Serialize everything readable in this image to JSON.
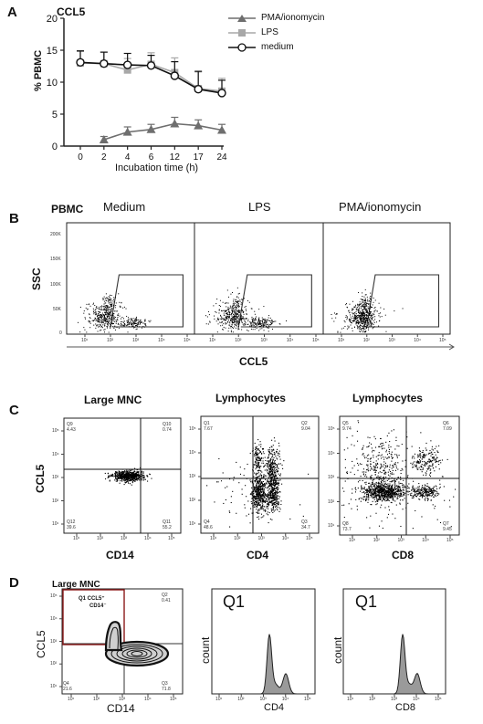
{
  "panelA": {
    "letter": "A",
    "title": "CCL5",
    "ylabel": "% PBMC",
    "xlabel": "Incubation time (h)",
    "legend": [
      {
        "label": "PMA/ionomycin",
        "color": "#6e6e6e",
        "marker": "triangle"
      },
      {
        "label": "LPS",
        "color": "#a8a8a8",
        "marker": "square"
      },
      {
        "label": "medium",
        "color": "#111111",
        "marker": "circle"
      }
    ]
  },
  "chart_data": {
    "type": "line",
    "title": "CCL5",
    "xlabel": "Incubation time (h)",
    "ylabel": "% PBMC",
    "categories": [
      "0",
      "2",
      "4",
      "6",
      "12",
      "17",
      "24"
    ],
    "ylim": [
      0,
      20
    ],
    "yticks": [
      0,
      5,
      10,
      15,
      20
    ],
    "series": [
      {
        "name": "PMA/ionomycin",
        "x": [
          2,
          4,
          6,
          12,
          17,
          24
        ],
        "values": [
          1.0,
          2.2,
          2.6,
          3.5,
          3.2,
          2.5
        ],
        "err": [
          0.5,
          0.8,
          0.8,
          1.0,
          0.9,
          0.9
        ]
      },
      {
        "name": "LPS",
        "x": [
          0,
          2,
          4,
          6,
          12,
          17,
          24
        ],
        "values": [
          13.0,
          12.9,
          11.9,
          12.8,
          11.5,
          9.0,
          8.6
        ],
        "err": [
          1.8,
          1.8,
          1.8,
          1.8,
          2.3,
          2.6,
          2.0
        ]
      },
      {
        "name": "medium",
        "x": [
          0,
          2,
          4,
          6,
          12,
          17,
          24
        ],
        "values": [
          13.1,
          12.9,
          12.7,
          12.6,
          11.0,
          8.9,
          8.3
        ],
        "err": [
          1.8,
          1.8,
          1.8,
          1.6,
          2.2,
          2.8,
          2.0
        ]
      }
    ]
  },
  "panelB": {
    "letter": "B",
    "row_label": "PBMC",
    "columns": [
      "Medium",
      "LPS",
      "PMA/ionomycin"
    ],
    "ylabel": "SSC",
    "xlabel": "CCL5",
    "yticks": [
      "200K",
      "150K",
      "100K",
      "50K",
      "0"
    ],
    "xticks": [
      "10¹",
      "10²",
      "10³",
      "10⁴",
      "10⁵"
    ]
  },
  "panelC": {
    "letter": "C",
    "ylabel": "CCL5",
    "plots": [
      {
        "title": "Large MNC",
        "xlabel": "CD14",
        "quadrants": [
          {
            "name": "Q9",
            "value": "4.43"
          },
          {
            "name": "Q10",
            "value": "0.74"
          },
          {
            "name": "Q12",
            "value": "39.6"
          },
          {
            "name": "Q11",
            "value": "55.2"
          }
        ]
      },
      {
        "title": "Lymphocytes",
        "xlabel": "CD4",
        "quadrants": [
          {
            "name": "Q1",
            "value": "7.67"
          },
          {
            "name": "Q2",
            "value": "9.04"
          },
          {
            "name": "Q4",
            "value": "48.6"
          },
          {
            "name": "Q3",
            "value": "34.7"
          }
        ]
      },
      {
        "title": "Lymphocytes",
        "xlabel": "CD8",
        "quadrants": [
          {
            "name": "Q5",
            "value": "9.74"
          },
          {
            "name": "Q6",
            "value": "7.09"
          },
          {
            "name": "Q8",
            "value": "73.7"
          },
          {
            "name": "Q7",
            "value": "9.45"
          }
        ]
      }
    ],
    "yticks": [
      "10⁵",
      "10⁴",
      "10³",
      "10²",
      "10¹"
    ],
    "xticks": [
      "10¹",
      "10²",
      "10³",
      "10⁴",
      "10⁵"
    ]
  },
  "panelD": {
    "letter": "D",
    "title": "Large MNC",
    "gate_label_line1": "Q1 CCL5⁺",
    "gate_label_line2": "CD14⁻",
    "quadrants": [
      {
        "name": "Q2",
        "value": "0.41"
      },
      {
        "name": "Q4",
        "value": "21.6"
      },
      {
        "name": "Q3",
        "value": "71.8"
      }
    ],
    "ylabel": "CCL5",
    "xlabel": "CD14",
    "histograms": [
      {
        "title": "Q1",
        "ylabel": "count",
        "xlabel": "CD4"
      },
      {
        "title": "Q1",
        "ylabel": "count",
        "xlabel": "CD8"
      }
    ],
    "gate_color": "#8b1a1a"
  }
}
